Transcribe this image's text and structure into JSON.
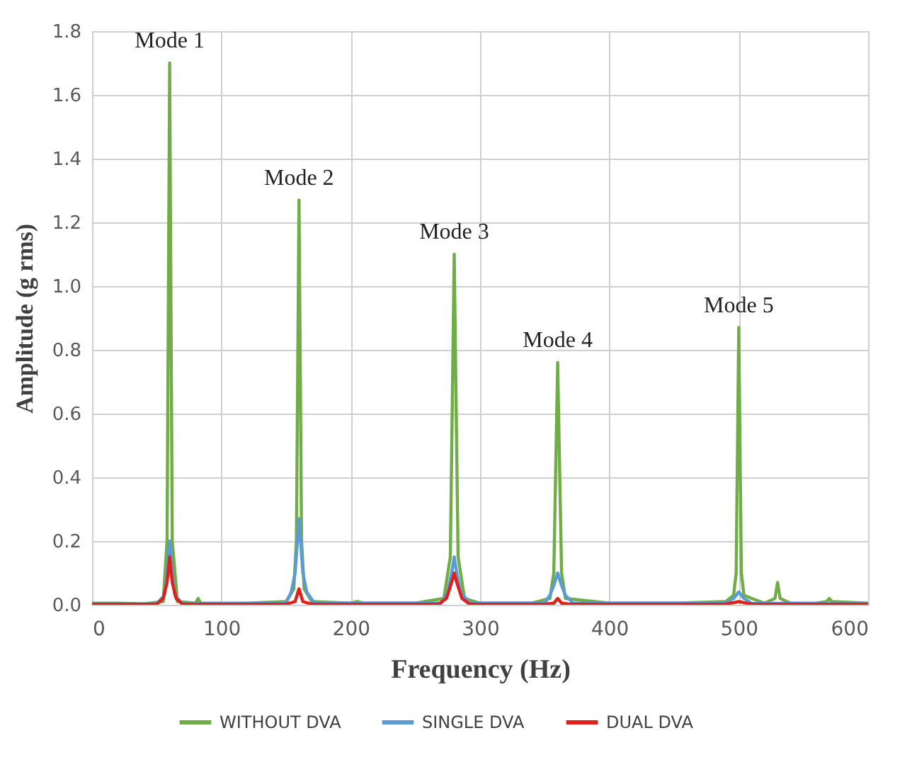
{
  "chart_data": {
    "type": "line",
    "xlabel": "Frequency (Hz)",
    "ylabel": "Amplitude (g rms)",
    "xlim": [
      0,
      600
    ],
    "xticks": [
      0,
      100,
      200,
      300,
      400,
      500,
      600
    ],
    "ylim": [
      0,
      1.8
    ],
    "yticks": [
      {
        "value": 0,
        "label": "0.0"
      },
      {
        "value": 0.2,
        "label": "0.2"
      },
      {
        "value": 0.4,
        "label": "0.4"
      },
      {
        "value": 0.6,
        "label": "0.6"
      },
      {
        "value": 0.8,
        "label": "0.8"
      },
      {
        "value": 1,
        "label": "1.0"
      },
      {
        "value": 1.2,
        "label": "1.2"
      },
      {
        "value": 1.4,
        "label": "1.4"
      },
      {
        "value": 1.6,
        "label": "1.6"
      },
      {
        "value": 1.8,
        "label": "1.8"
      }
    ],
    "grid": true,
    "legend": "bottom",
    "annotations": [
      {
        "text": "Mode 1",
        "x": 60,
        "y": 1.7
      },
      {
        "text": "Mode 2",
        "x": 160,
        "y": 1.27
      },
      {
        "text": "Mode 3",
        "x": 280,
        "y": 1.1
      },
      {
        "text": "Mode 4",
        "x": 360,
        "y": 0.76
      },
      {
        "text": "Mode 5",
        "x": 500,
        "y": 0.87
      }
    ],
    "series": [
      {
        "name": "WITHOUT DVA",
        "color": "#70ad47",
        "x": [
          0,
          20,
          40,
          55,
          58,
          60,
          62,
          66,
          80,
          82,
          84,
          120,
          150,
          156,
          158,
          160,
          162,
          164,
          170,
          200,
          205,
          210,
          250,
          272,
          277,
          280,
          283,
          288,
          300,
          340,
          354,
          357,
          360,
          363,
          366,
          400,
          450,
          490,
          496,
          498,
          500,
          502,
          504,
          510,
          520,
          528,
          530,
          532,
          540,
          560,
          568,
          570,
          572,
          600
        ],
        "values": [
          0.005,
          0.005,
          0.003,
          0.01,
          0.2,
          1.7,
          0.2,
          0.01,
          0.005,
          0.02,
          0.005,
          0.005,
          0.01,
          0.05,
          0.2,
          1.27,
          0.2,
          0.05,
          0.01,
          0.005,
          0.01,
          0.005,
          0.005,
          0.02,
          0.15,
          1.1,
          0.15,
          0.02,
          0.005,
          0.005,
          0.02,
          0.1,
          0.76,
          0.1,
          0.02,
          0.005,
          0.005,
          0.01,
          0.03,
          0.1,
          0.87,
          0.1,
          0.03,
          0.02,
          0.005,
          0.02,
          0.07,
          0.02,
          0.005,
          0.005,
          0.01,
          0.02,
          0.01,
          0.005
        ]
      },
      {
        "name": "SINGLE DVA",
        "color": "#5b9bd5",
        "x": [
          0,
          50,
          56,
          58,
          60,
          62,
          64,
          70,
          150,
          154,
          157,
          160,
          163,
          166,
          172,
          270,
          275,
          278,
          280,
          282,
          285,
          292,
          350,
          354,
          357,
          360,
          363,
          366,
          372,
          490,
          496,
          500,
          504,
          510,
          600
        ],
        "values": [
          0.003,
          0.003,
          0.03,
          0.1,
          0.2,
          0.1,
          0.03,
          0.003,
          0.005,
          0.04,
          0.1,
          0.27,
          0.1,
          0.04,
          0.005,
          0.005,
          0.04,
          0.1,
          0.15,
          0.1,
          0.04,
          0.005,
          0.005,
          0.03,
          0.06,
          0.1,
          0.06,
          0.03,
          0.005,
          0.005,
          0.02,
          0.04,
          0.02,
          0.005,
          0.003
        ]
      },
      {
        "name": "DUAL DVA",
        "color": "#e0201b",
        "x": [
          0,
          50,
          55,
          58,
          60,
          62,
          65,
          70,
          150,
          157,
          160,
          163,
          170,
          268,
          274,
          278,
          280,
          282,
          286,
          292,
          350,
          357,
          360,
          363,
          370,
          490,
          500,
          510,
          600
        ],
        "values": [
          0.002,
          0.002,
          0.02,
          0.07,
          0.15,
          0.07,
          0.02,
          0.002,
          0.002,
          0.01,
          0.05,
          0.01,
          0.002,
          0.002,
          0.02,
          0.07,
          0.1,
          0.07,
          0.02,
          0.002,
          0.002,
          0.005,
          0.02,
          0.005,
          0.002,
          0.002,
          0.01,
          0.002,
          0.002
        ]
      }
    ]
  }
}
